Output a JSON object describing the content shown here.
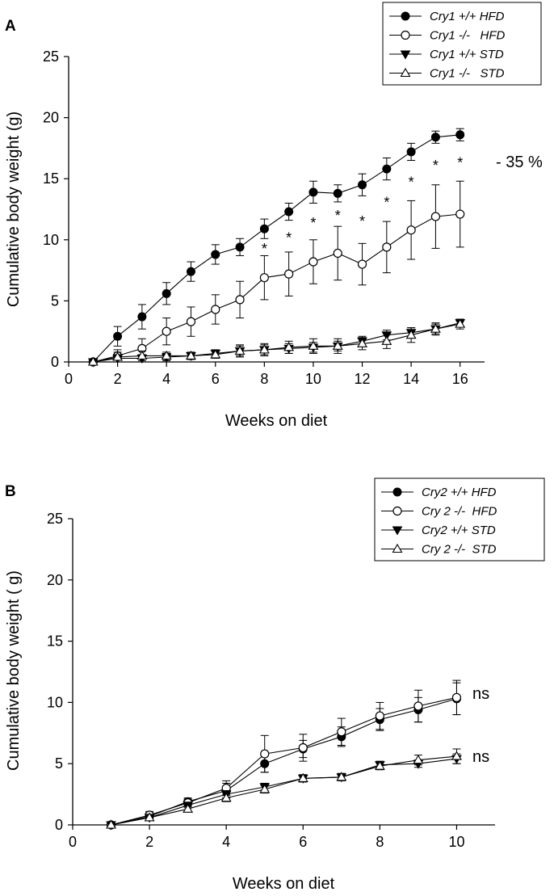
{
  "chart_data": [
    {
      "type": "line",
      "panel_label": "A",
      "xlabel": "Weeks on diet",
      "ylabel": "Cumulative body weight (g)",
      "xlim": [
        0,
        17
      ],
      "ylim": [
        0,
        25
      ],
      "xticks": [
        0,
        2,
        4,
        6,
        8,
        10,
        12,
        14,
        16
      ],
      "yticks": [
        0,
        5,
        10,
        15,
        20,
        25
      ],
      "x": [
        1,
        2,
        3,
        4,
        5,
        6,
        7,
        8,
        9,
        10,
        11,
        12,
        13,
        14,
        15,
        16
      ],
      "legend_position": "top-right",
      "series": [
        {
          "name": "Cry1 +/+ HFD",
          "marker": "filled-circle",
          "values": [
            0,
            2.1,
            3.7,
            5.6,
            7.4,
            8.8,
            9.4,
            10.9,
            12.3,
            13.9,
            13.8,
            14.5,
            15.8,
            17.2,
            18.4,
            18.6
          ],
          "errors": [
            0.1,
            0.8,
            1.0,
            0.9,
            0.8,
            0.8,
            0.7,
            0.8,
            0.7,
            0.9,
            0.7,
            0.9,
            0.9,
            0.7,
            0.5,
            0.5
          ]
        },
        {
          "name": "Cry1 -/-   HFD",
          "marker": "open-circle",
          "values": [
            0,
            0.5,
            1.1,
            2.5,
            3.3,
            4.3,
            5.1,
            6.9,
            7.2,
            8.2,
            8.9,
            8.0,
            9.4,
            10.8,
            11.9,
            12.1
          ],
          "errors": [
            0.1,
            0.5,
            0.8,
            1.1,
            1.2,
            1.2,
            1.5,
            1.8,
            1.8,
            1.8,
            2.2,
            1.7,
            2.1,
            2.4,
            2.6,
            2.7
          ]
        },
        {
          "name": "Cry1 +/+ STD",
          "marker": "filled-triangle-down",
          "values": [
            0,
            0.3,
            0.3,
            0.4,
            0.5,
            0.7,
            0.9,
            1.0,
            1.1,
            1.2,
            1.3,
            1.7,
            2.2,
            2.4,
            2.7,
            3.2
          ],
          "errors": [
            0.1,
            0.3,
            0.3,
            0.3,
            0.3,
            0.3,
            0.4,
            0.4,
            0.4,
            0.4,
            0.4,
            0.4,
            0.4,
            0.4,
            0.4,
            0.3
          ]
        },
        {
          "name": "Cry1 -/-   STD",
          "marker": "open-triangle-up",
          "values": [
            0,
            0.4,
            0.5,
            0.5,
            0.5,
            0.6,
            0.9,
            1.0,
            1.2,
            1.3,
            1.3,
            1.5,
            1.7,
            2.2,
            2.7,
            3.1
          ],
          "errors": [
            0.1,
            0.4,
            0.4,
            0.3,
            0.3,
            0.3,
            0.5,
            0.5,
            0.5,
            0.6,
            0.6,
            0.5,
            0.6,
            0.6,
            0.5,
            0.4
          ]
        }
      ],
      "significance_marks": {
        "symbol": "*",
        "x": [
          8,
          9,
          10,
          11,
          12,
          13,
          14,
          15,
          16
        ]
      },
      "annotation": "- 35 %"
    },
    {
      "type": "line",
      "panel_label": "B",
      "xlabel": "Weeks on diet",
      "ylabel": "Cumulative body weight  ( g)",
      "xlim": [
        0,
        11
      ],
      "ylim": [
        0,
        25
      ],
      "xticks": [
        0,
        2,
        4,
        6,
        8,
        10
      ],
      "yticks": [
        0,
        5,
        10,
        15,
        20,
        25
      ],
      "x": [
        1,
        2,
        3,
        4,
        5,
        6,
        7,
        8,
        9,
        10
      ],
      "legend_position": "top-right",
      "series": [
        {
          "name": "Cry2 +/+ HFD",
          "marker": "filled-circle",
          "values": [
            0,
            0.7,
            1.9,
            2.8,
            5.0,
            6.2,
            7.2,
            8.6,
            9.4,
            10.3
          ],
          "errors": [
            0.1,
            0.3,
            0.3,
            0.6,
            0.7,
            0.7,
            0.8,
            0.9,
            1.0,
            1.3
          ]
        },
        {
          "name": "Cry 2 -/-  HFD",
          "marker": "open-circle",
          "values": [
            0,
            0.8,
            1.8,
            3.0,
            5.8,
            6.3,
            7.6,
            8.9,
            9.7,
            10.4
          ],
          "errors": [
            0.1,
            0.3,
            0.3,
            0.6,
            1.5,
            1.1,
            1.1,
            1.1,
            1.3,
            1.4
          ]
        },
        {
          "name": "Cry2 +/+ STD",
          "marker": "filled-triangle-down",
          "values": [
            0,
            0.6,
            1.6,
            2.5,
            3.1,
            3.8,
            3.9,
            4.9,
            5.0,
            5.4
          ],
          "errors": [
            0.1,
            0.2,
            0.2,
            0.3,
            0.3,
            0.3,
            0.3,
            0.3,
            0.3,
            0.4
          ]
        },
        {
          "name": "Cry 2 -/-  STD",
          "marker": "open-triangle-up",
          "values": [
            0,
            0.6,
            1.3,
            2.2,
            2.9,
            3.8,
            3.9,
            4.8,
            5.3,
            5.6
          ],
          "errors": [
            0.1,
            0.2,
            0.2,
            0.3,
            0.3,
            0.3,
            0.3,
            0.3,
            0.4,
            0.6
          ]
        }
      ],
      "annotations": [
        "ns",
        "ns"
      ]
    }
  ]
}
